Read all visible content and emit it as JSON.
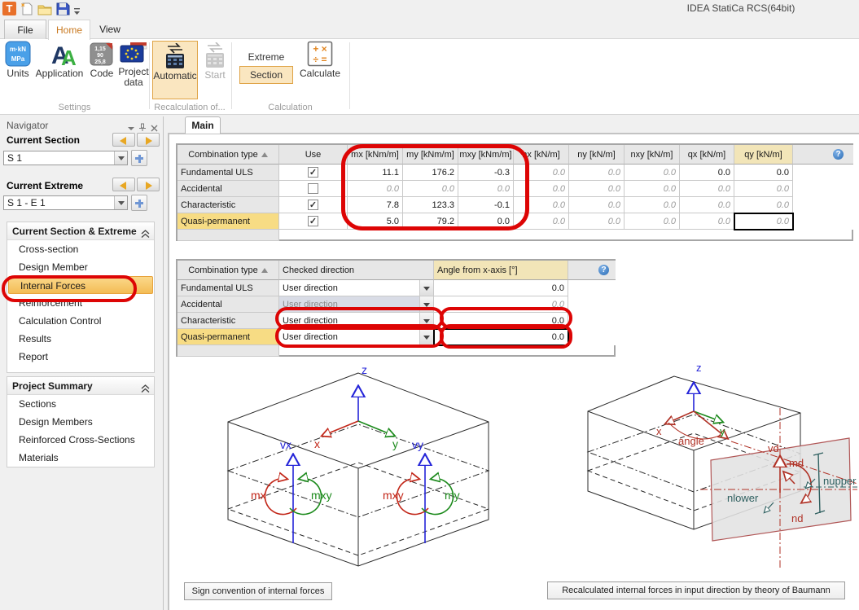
{
  "window": {
    "title": "IDEA StatiCa RCS(64bit)"
  },
  "tabs": {
    "file": "File",
    "home": "Home",
    "view": "View"
  },
  "ribbon": {
    "settings": {
      "label": "Settings",
      "units": "Units",
      "application": "Application",
      "code": "Code",
      "project_data": "Project data"
    },
    "recalculation": {
      "label": "Recalculation of...",
      "automatic": "Automatic",
      "start": "Start"
    },
    "calculation": {
      "label": "Calculation",
      "extreme": "Extreme",
      "section": "Section",
      "calculate": "Calculate"
    }
  },
  "icons": {
    "help": "?",
    "check": "✓",
    "app_logo": "T",
    "units_line1": "m·kN",
    "units_line2": "MPa",
    "application_a1": "A",
    "application_a2": "A",
    "code_lines": [
      "1,15",
      "90",
      "25,8"
    ],
    "calc_row1": "+ ×",
    "calc_row2": "÷ ="
  },
  "navigator": {
    "title": "Navigator",
    "current_section_label": "Current Section",
    "current_section_value": "S 1",
    "current_extreme_label": "Current Extreme",
    "current_extreme_value": "S 1 - E 1",
    "group1": {
      "title": "Current Section & Extreme",
      "items": [
        "Cross-section",
        "Design Member",
        "Internal Forces",
        "Reinforcement",
        "Calculation Control",
        "Results",
        "Report"
      ],
      "selected": "Internal Forces"
    },
    "group2": {
      "title": "Project Summary",
      "items": [
        "Sections",
        "Design Members",
        "Reinforced Cross-Sections",
        "Materials"
      ]
    }
  },
  "main_tab": "Main",
  "forces_table": {
    "columns": [
      "Combination type",
      "Use",
      "mx [kNm/m]",
      "my [kNm/m]",
      "mxy [kNm/m]",
      "nx [kN/m]",
      "ny [kN/m]",
      "nxy [kN/m]",
      "qx [kN/m]",
      "qy [kN/m]"
    ],
    "yellow_column": "qy [kN/m]",
    "rows": [
      {
        "label": "Fundamental ULS",
        "use": true,
        "values": [
          "11.1",
          "176.2",
          "-0.3",
          "0.0",
          "0.0",
          "0.0",
          "0.0",
          "0.0"
        ],
        "emph": [
          1,
          1,
          1,
          0,
          0,
          0,
          1,
          1
        ],
        "label_selected": false
      },
      {
        "label": "Accidental",
        "use": false,
        "values": [
          "0.0",
          "0.0",
          "0.0",
          "0.0",
          "0.0",
          "0.0",
          "0.0",
          "0.0"
        ],
        "emph": [
          0,
          0,
          0,
          0,
          0,
          0,
          0,
          0
        ],
        "label_selected": false
      },
      {
        "label": "Characteristic",
        "use": true,
        "values": [
          "7.8",
          "123.3",
          "-0.1",
          "0.0",
          "0.0",
          "0.0",
          "0.0",
          "0.0"
        ],
        "emph": [
          1,
          1,
          1,
          0,
          0,
          0,
          0,
          0
        ],
        "label_selected": false
      },
      {
        "label": "Quasi-permanent",
        "use": true,
        "values": [
          "5.0",
          "79.2",
          "0.0",
          "0.0",
          "0.0",
          "0.0",
          "0.0",
          "0.0"
        ],
        "emph": [
          1,
          1,
          1,
          0,
          0,
          0,
          0,
          0
        ],
        "label_selected": true
      }
    ]
  },
  "direction_table": {
    "columns": [
      "Combination type",
      "Checked direction",
      "Angle from x-axis [°]"
    ],
    "yellow_column": "Angle from x-axis [°]",
    "rows": [
      {
        "label": "Fundamental ULS",
        "direction": "User direction",
        "disabled": false,
        "angle": "0.0",
        "angle_emph": 1,
        "label_selected": false
      },
      {
        "label": "Accidental",
        "direction": "User direction",
        "disabled": true,
        "angle": "0.0",
        "angle_emph": 0,
        "label_selected": false
      },
      {
        "label": "Characteristic",
        "direction": "User direction",
        "disabled": false,
        "angle": "0.0",
        "angle_emph": 1,
        "label_selected": false
      },
      {
        "label": "Quasi-permanent",
        "direction": "User direction",
        "disabled": false,
        "angle": "0.0",
        "angle_emph": 1,
        "label_selected": true
      }
    ]
  },
  "diagram_left": {
    "caption": "Sign convention of internal forces",
    "labels": {
      "z": "z",
      "x": "x",
      "y": "y",
      "vx": "vx",
      "vy": "vy",
      "mx": "mx",
      "mxy_left": "mxy",
      "mxy_right": "mxy",
      "my": "my"
    }
  },
  "diagram_right": {
    "caption": "Recalculated internal forces in input direction by theory of Baumann",
    "labels": {
      "z": "z",
      "x": "x",
      "y": "y",
      "angle": "angle",
      "vd": "vd",
      "md": "md",
      "nd": "nd",
      "nupper": "nupper",
      "nlower": "nlower"
    }
  },
  "colors": {
    "annotation_red": "#dd0505",
    "selection_yellow": "#f7dc84",
    "header_yellow": "#f2e5b8",
    "nav_highlight": "#f5c564",
    "axis_x_red": "#c22618",
    "axis_y_green": "#1c8a1c",
    "axis_z_blue": "#2424d8",
    "baumann_teal": "#2f6060"
  }
}
